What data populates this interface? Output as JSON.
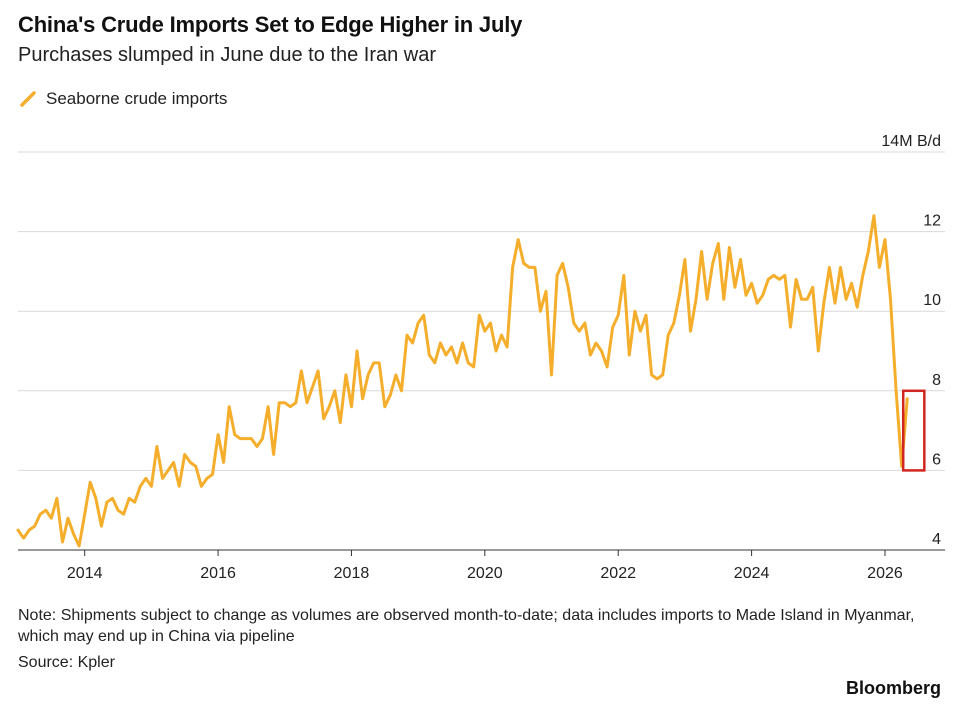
{
  "header": {
    "title": "China's Crude Imports Set to Edge Higher in July",
    "subtitle": "Purchases slumped in June due to the Iran war"
  },
  "footer": {
    "note": "Note: Shipments subject to change as volumes are observed month-to-date; data includes imports to Made Island in Myanmar, which may end up in China via pipeline",
    "source": "Source: Kpler",
    "brand": "Bloomberg"
  },
  "colors": {
    "line": "#F5AE2C",
    "highlight_box": "#D0261F",
    "grid": "#D9D9D9"
  },
  "chart_data": {
    "type": "line",
    "series": [
      {
        "name": "Seaborne crude imports",
        "start": "2013-01",
        "frequency": "monthly",
        "values": [
          4.5,
          4.3,
          4.5,
          4.6,
          4.9,
          5.0,
          4.8,
          5.3,
          4.2,
          4.8,
          4.4,
          4.1,
          4.9,
          5.7,
          5.3,
          4.6,
          5.2,
          5.3,
          5.0,
          4.9,
          5.3,
          5.2,
          5.6,
          5.8,
          5.6,
          6.6,
          5.8,
          6.0,
          6.2,
          5.6,
          6.4,
          6.2,
          6.1,
          5.6,
          5.8,
          5.9,
          6.9,
          6.2,
          7.6,
          6.9,
          6.8,
          6.8,
          6.8,
          6.6,
          6.8,
          7.6,
          6.4,
          7.7,
          7.7,
          7.6,
          7.7,
          8.5,
          7.7,
          8.1,
          8.5,
          7.3,
          7.6,
          8.0,
          7.2,
          8.4,
          7.6,
          9.0,
          7.8,
          8.4,
          8.7,
          8.7,
          7.6,
          7.9,
          8.4,
          8.0,
          9.4,
          9.2,
          9.7,
          9.9,
          8.9,
          8.7,
          9.2,
          8.9,
          9.1,
          8.7,
          9.2,
          8.7,
          8.6,
          9.9,
          9.5,
          9.7,
          9.0,
          9.4,
          9.1,
          11.1,
          11.8,
          11.2,
          11.1,
          11.1,
          10.0,
          10.5,
          8.4,
          10.9,
          11.2,
          10.6,
          9.7,
          9.5,
          9.7,
          8.9,
          9.2,
          9.0,
          8.6,
          9.6,
          9.9,
          10.9,
          8.9,
          10.0,
          9.5,
          9.9,
          8.4,
          8.3,
          8.4,
          9.4,
          9.7,
          10.4,
          11.3,
          9.5,
          10.3,
          11.5,
          10.3,
          11.2,
          11.7,
          10.3,
          11.6,
          10.6,
          11.3,
          10.4,
          10.7,
          10.2,
          10.4,
          10.8,
          10.9,
          10.8,
          10.9,
          9.6,
          10.8,
          10.3,
          10.3,
          10.6,
          9.0,
          10.2,
          11.1,
          10.2,
          11.1,
          10.3,
          10.7,
          10.1,
          10.9,
          11.5,
          12.4,
          11.1,
          11.8,
          10.3,
          8.0,
          6.1,
          7.8
        ]
      }
    ],
    "x_ticks": [
      "2014",
      "2016",
      "2018",
      "2020",
      "2022",
      "2024",
      "2026"
    ],
    "y_ticks": [
      "4",
      "6",
      "8",
      "10",
      "12",
      "14M B/d"
    ],
    "y_tick_values": [
      4,
      6,
      8,
      10,
      12,
      14
    ],
    "ylim": [
      4,
      14
    ],
    "xlim": [
      "2013-01",
      "2026-10"
    ],
    "ylabel": "14M B/d",
    "grid": true,
    "legend_position": "top-left",
    "annotation": "highlight box around 2026-05 to 2026-07"
  }
}
